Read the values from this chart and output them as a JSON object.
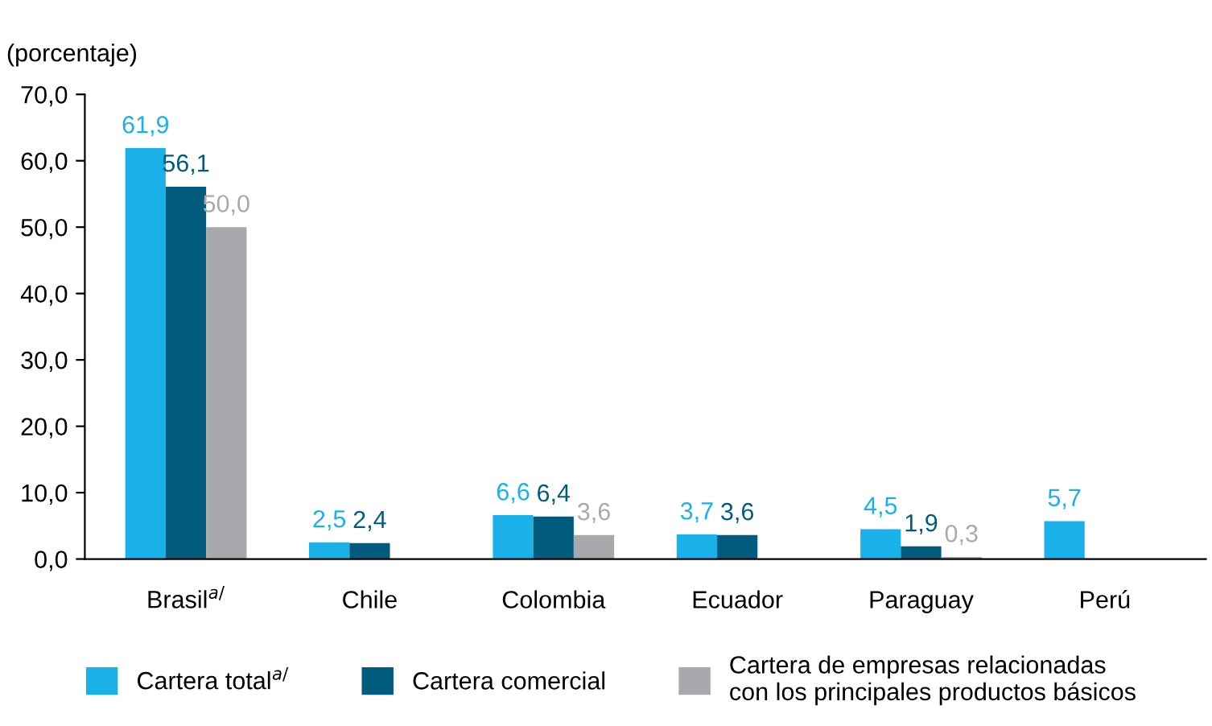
{
  "chart_data": {
    "type": "bar",
    "ylabel": "(porcentaje)",
    "categories": [
      "Brasil$^{a/}$",
      "Chile",
      "Colombia",
      "Ecuador",
      "Paraguay",
      "Perú"
    ],
    "series": [
      {
        "name": "Cartera total$^{a/}$",
        "color": "#1ab1e8",
        "values": [
          61.9,
          2.5,
          6.6,
          3.7,
          4.5,
          5.7
        ],
        "value_labels": [
          "61,9",
          "2,5",
          "6,6",
          "3,7",
          "4,5",
          "5,7"
        ]
      },
      {
        "name": "Cartera comercial",
        "color": "#005b7c",
        "values": [
          56.1,
          2.4,
          6.4,
          3.6,
          1.9,
          null
        ],
        "value_labels": [
          "56,1",
          "2,4",
          "6,4",
          "3,6",
          "1,9",
          null
        ]
      },
      {
        "name": "Cartera de empresas relacionadas\ncon los principales productos básicos",
        "color": "#a7a9ac",
        "values": [
          50.0,
          null,
          3.6,
          null,
          0.3,
          null
        ],
        "value_labels": [
          "50,0",
          null,
          "3,6",
          null,
          "0,3",
          null
        ]
      }
    ],
    "ylim": [
      0,
      70
    ],
    "yticks": [
      {
        "value": 0,
        "label": "0,0"
      },
      {
        "value": 10,
        "label": "10,0"
      },
      {
        "value": 20,
        "label": "20,0"
      },
      {
        "value": 30,
        "label": "30,0"
      },
      {
        "value": 40,
        "label": "40,0"
      },
      {
        "value": 50,
        "label": "50,0"
      },
      {
        "value": 60,
        "label": "60,0"
      },
      {
        "value": 70,
        "label": "70,0"
      }
    ],
    "grid": false,
    "legend": "bottom"
  }
}
